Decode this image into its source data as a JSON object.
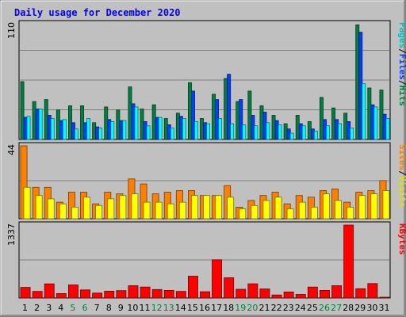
{
  "chart_data": {
    "type": "bar",
    "title": "Daily usage for December 2020",
    "categories": [
      "1",
      "2",
      "3",
      "4",
      "5",
      "6",
      "7",
      "8",
      "9",
      "10",
      "11",
      "12",
      "13",
      "14",
      "15",
      "16",
      "17",
      "18",
      "19",
      "20",
      "21",
      "22",
      "23",
      "24",
      "25",
      "26",
      "27",
      "28",
      "29",
      "30",
      "31"
    ],
    "weekend_days": [
      "5",
      "6",
      "12",
      "13",
      "19",
      "20",
      "26",
      "27"
    ],
    "panels": [
      {
        "id": "hits_files_pages",
        "max_label": "110",
        "ymax": 110,
        "series": [
          {
            "name": "Hits",
            "color": "#008040",
            "values": [
              55,
              36,
              38,
              28,
              32,
              32,
              16,
              31,
              28,
              50,
              29,
              33,
              20,
              25,
              54,
              20,
              43,
              58,
              36,
              46,
              32,
              23,
              15,
              23,
              17,
              40,
              30,
              25,
              109,
              49,
              47
            ]
          },
          {
            "name": "Files",
            "color": "#0040ff",
            "values": [
              21,
              29,
              23,
              18,
              16,
              16,
              12,
              19,
              18,
              34,
              17,
              21,
              14,
              22,
              46,
              16,
              38,
              62,
              38,
              23,
              26,
              18,
              10,
              15,
              10,
              19,
              19,
              17,
              102,
              33,
              24
            ]
          },
          {
            "name": "Pages",
            "color": "#00ffff",
            "values": [
              22,
              29,
              20,
              19,
              10,
              20,
              11,
              17,
              18,
              31,
              13,
              21,
              11,
              20,
              17,
              15,
              20,
              15,
              14,
              13,
              16,
              14,
              6,
              13,
              8,
              13,
              15,
              11,
              53,
              31,
              20
            ]
          }
        ]
      },
      {
        "id": "visits_sites",
        "max_label": "44",
        "ymax": 44,
        "series": [
          {
            "name": "Visits",
            "color": "#ff8000",
            "values": [
              44,
              19,
              19,
              10,
              16,
              16,
              9,
              16,
              15,
              24,
              21,
              15,
              16,
              17,
              17,
              14,
              14,
              20,
              7,
              11,
              14,
              16,
              9,
              14,
              13,
              17,
              18,
              10,
              16,
              17,
              23
            ]
          },
          {
            "name": "Sites",
            "color": "#ffff00",
            "values": [
              19,
              14,
              12,
              9,
              7,
              13,
              8,
              12,
              14,
              15,
              10,
              10,
              9,
              10,
              14,
              14,
              14,
              13,
              6,
              8,
              11,
              13,
              6,
              10,
              7,
              15,
              11,
              7,
              14,
              15,
              17
            ]
          }
        ]
      },
      {
        "id": "kbytes",
        "max_label": "1337",
        "ymax": 1337,
        "series": [
          {
            "name": "KBytes",
            "color": "#ff0000",
            "values": [
              195,
              120,
              258,
              82,
              240,
              148,
              90,
              125,
              135,
              225,
              200,
              156,
              140,
              120,
              400,
              115,
              700,
              370,
              160,
              260,
              165,
              55,
              110,
              65,
              200,
              140,
              225,
              1337,
              170,
              265,
              1
            ]
          }
        ]
      }
    ],
    "side_labels": {
      "top": [
        {
          "text": "Pages",
          "color": "#00c0c0"
        },
        {
          "text": "/",
          "color": "#000000"
        },
        {
          "text": "Files",
          "color": "#0040ff"
        },
        {
          "text": "/",
          "color": "#000000"
        },
        {
          "text": "Hits",
          "color": "#008040"
        }
      ],
      "middle": [
        {
          "text": "Sites",
          "color": "#ff8000"
        },
        {
          "text": "/",
          "color": "#000000"
        },
        {
          "text": "Visits",
          "color": "#e0e000"
        }
      ],
      "bottom": [
        {
          "text": "KBytes",
          "color": "#ff0000"
        }
      ]
    },
    "colors": {
      "background": "#c0c0c0",
      "title": "#0000ff",
      "weekday_label": "#000000",
      "weekend_label": "#008040"
    }
  }
}
